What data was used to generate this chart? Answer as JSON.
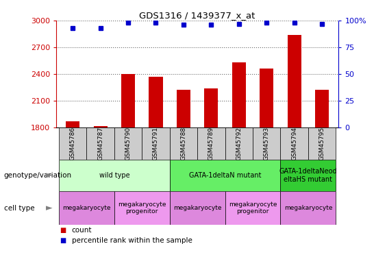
{
  "title": "GDS1316 / 1439377_x_at",
  "samples": [
    "GSM45786",
    "GSM45787",
    "GSM45790",
    "GSM45791",
    "GSM45788",
    "GSM45789",
    "GSM45792",
    "GSM45793",
    "GSM45794",
    "GSM45795"
  ],
  "counts": [
    1870,
    1815,
    2400,
    2370,
    2220,
    2240,
    2530,
    2460,
    2840,
    2220
  ],
  "percentiles": [
    93,
    93,
    98,
    98,
    96,
    96,
    97,
    98,
    98,
    97
  ],
  "bar_color": "#cc0000",
  "dot_color": "#0000cc",
  "ymin": 1800,
  "ymax": 3000,
  "yticks": [
    1800,
    2100,
    2400,
    2700,
    3000
  ],
  "right_yticks": [
    0,
    25,
    50,
    75,
    100
  ],
  "genotype_groups": [
    {
      "label": "wild type",
      "start": 0,
      "end": 4,
      "color": "#ccffcc"
    },
    {
      "label": "GATA-1deltaN mutant",
      "start": 4,
      "end": 8,
      "color": "#66ee66"
    },
    {
      "label": "GATA-1deltaNeod\neltaHS mutant",
      "start": 8,
      "end": 10,
      "color": "#33cc33"
    }
  ],
  "cell_type_groups": [
    {
      "label": "megakaryocyte",
      "start": 0,
      "end": 2,
      "color": "#dd88dd"
    },
    {
      "label": "megakaryocyte\nprogenitor",
      "start": 2,
      "end": 4,
      "color": "#ee99ee"
    },
    {
      "label": "megakaryocyte",
      "start": 4,
      "end": 6,
      "color": "#dd88dd"
    },
    {
      "label": "megakaryocyte\nprogenitor",
      "start": 6,
      "end": 8,
      "color": "#ee99ee"
    },
    {
      "label": "megakaryocyte",
      "start": 8,
      "end": 10,
      "color": "#dd88dd"
    }
  ],
  "bar_color_red": "#cc0000",
  "dot_color_blue": "#0000cc",
  "ticklabel_gray": "#bbbbbb",
  "xticklabel_bg": "#cccccc"
}
